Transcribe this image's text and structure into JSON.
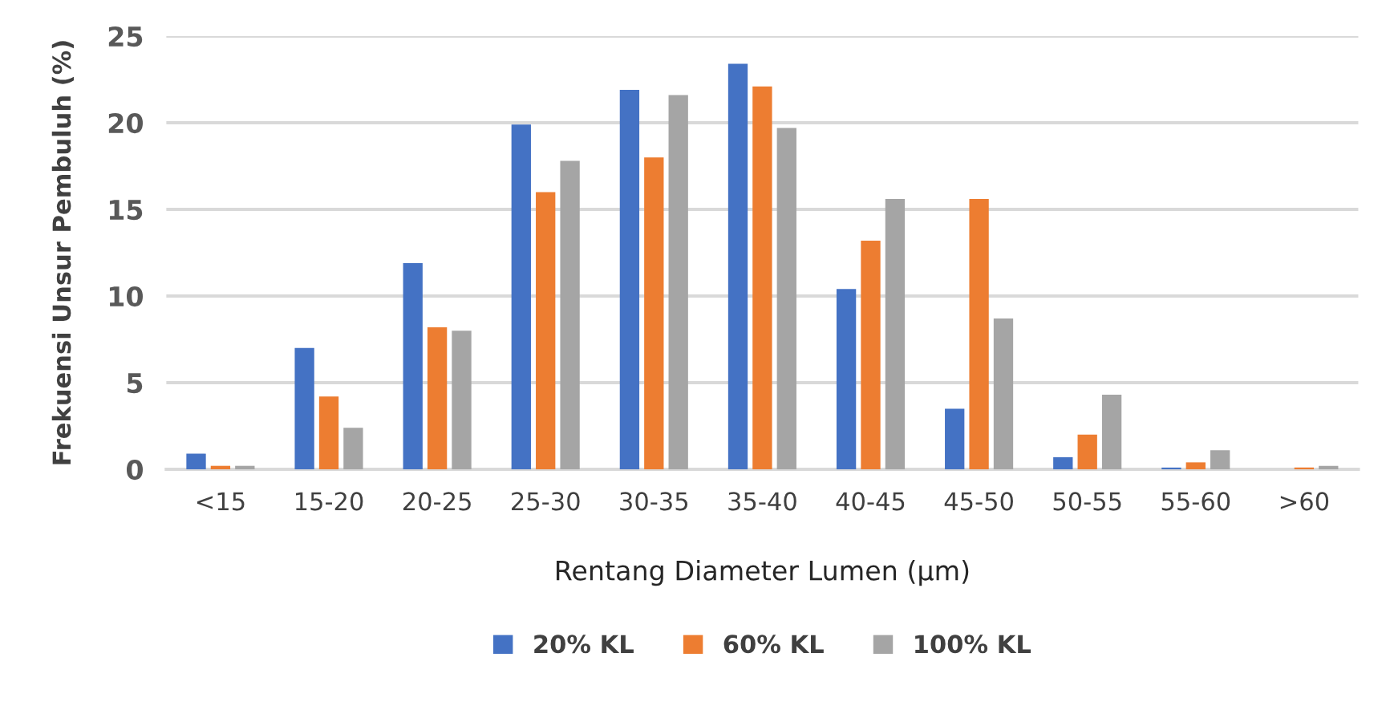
{
  "chart_data": {
    "type": "bar",
    "xlabel": "Rentang Diameter Lumen (µm)",
    "ylabel": "Frekuensi Unsur Pembuluh (%)",
    "categories": [
      "<15",
      "15-20",
      "20-25",
      "25-30",
      "30-35",
      "35-40",
      "40-45",
      "45-50",
      "50-55",
      "55-60",
      ">60"
    ],
    "series": [
      {
        "name": "20% KL",
        "color": "#4472c4",
        "values": [
          0.9,
          7.0,
          11.9,
          19.9,
          21.9,
          23.4,
          10.4,
          3.5,
          0.7,
          0.1,
          0
        ]
      },
      {
        "name": "60% KL",
        "color": "#ed7d31",
        "values": [
          0.2,
          4.2,
          8.2,
          16.0,
          18.0,
          22.1,
          13.2,
          15.6,
          2.0,
          0.4,
          0.1
        ]
      },
      {
        "name": "100% KL",
        "color": "#a5a5a5",
        "values": [
          0.2,
          2.4,
          8.0,
          17.8,
          21.6,
          19.7,
          15.6,
          8.7,
          4.3,
          1.1,
          0.2
        ]
      }
    ],
    "ylim": [
      0,
      25
    ],
    "yticks": [
      0,
      5,
      10,
      15,
      20,
      25
    ],
    "grid": "y",
    "legend": "bottom"
  }
}
